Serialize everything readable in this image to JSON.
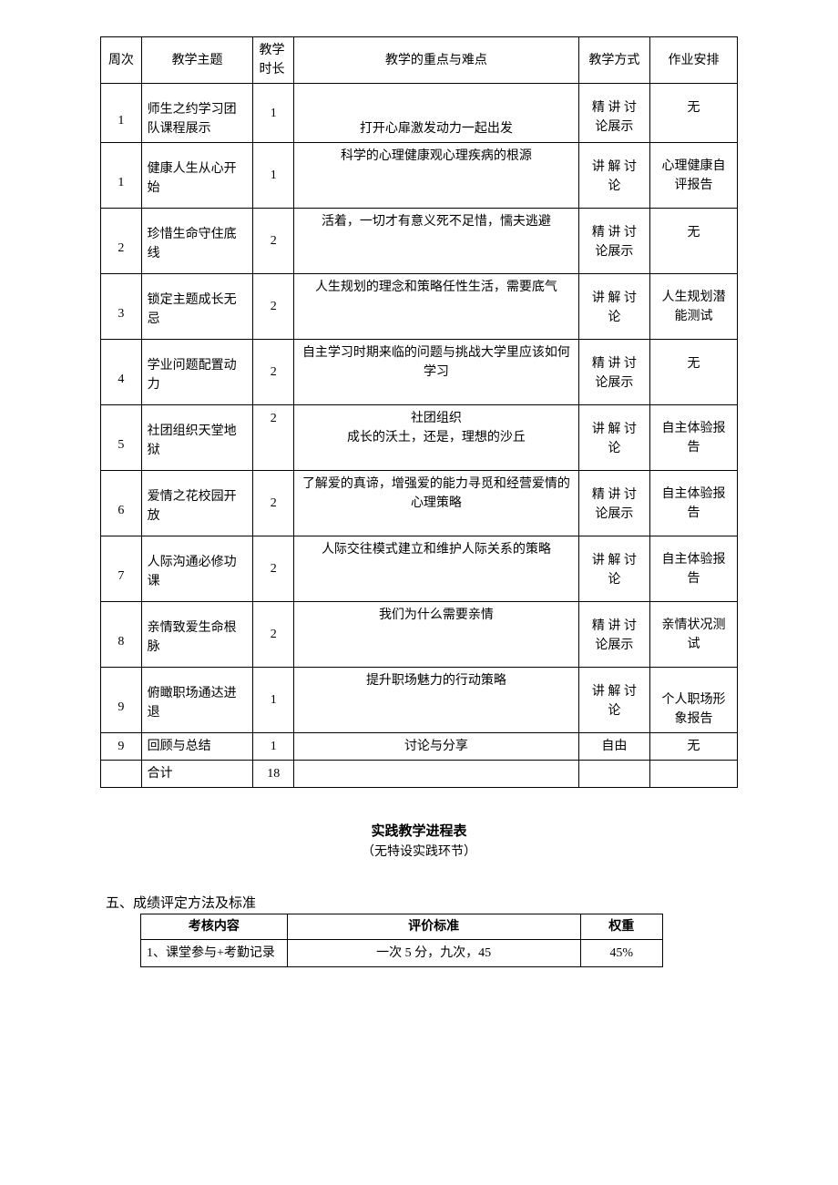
{
  "schedule": {
    "columns": [
      "周次",
      "教学主题",
      "教学时长",
      "教学的重点与难点",
      "教学方式",
      "作业安排"
    ],
    "rows": [
      {
        "week": "1",
        "topic": "师生之约学习团队课程展示",
        "hours": "1",
        "focus": "打开心扉激发动力一起出发",
        "method": "精讲讨论展示",
        "hw": "无"
      },
      {
        "week": "1",
        "topic": "健康人生从心开始",
        "hours": "1",
        "focus": "科学的心理健康观心理疾病的根源",
        "method": "讲解讨论",
        "hw": "心理健康自评报告"
      },
      {
        "week": "2",
        "topic": "珍惜生命守住底线",
        "hours": "2",
        "focus": "活着，一切才有意义死不足惜，懦夫逃避",
        "method": "精讲讨论展示",
        "hw": "无"
      },
      {
        "week": "3",
        "topic": "锁定主题成长无忌",
        "hours": "2",
        "focus": "人生规划的理念和策略任性生活，需要底气",
        "method": "讲解讨论",
        "hw": "人生规划潜能测试"
      },
      {
        "week": "4",
        "topic": "学业问题配置动力",
        "hours": "2",
        "focus": "自主学习时期来临的问题与挑战大学里应该如何学习",
        "method": "精讲讨论展示",
        "hw": "无"
      },
      {
        "week": "5",
        "topic": "社团组织天堂地狱",
        "hours": "2",
        "focus": "社团组织\n成长的沃土，还是，理想的沙丘",
        "method": "讲解讨论",
        "hw": "自主体验报告"
      },
      {
        "week": "6",
        "topic": "爱情之花校园开放",
        "hours": "2",
        "focus": "了解爱的真谛，增强爱的能力寻觅和经营爱情的心理策略",
        "method": "精讲讨论展示",
        "hw": "自主体验报告"
      },
      {
        "week": "7",
        "topic": "人际沟通必修功课",
        "hours": "2",
        "focus": "人际交往模式建立和维护人际关系的策略",
        "method": "讲解讨论",
        "hw": "自主体验报告"
      },
      {
        "week": "8",
        "topic": "亲情致爱生命根脉",
        "hours": "2",
        "focus": "我们为什么需要亲情",
        "method": "精讲讨论展示",
        "hw": "亲情状况测试"
      },
      {
        "week": "9",
        "topic": "俯瞰职场通达进退",
        "hours": "1",
        "focus": "提升职场魅力的行动策略",
        "method": "讲解讨论",
        "hw": "个人职场形象报告"
      },
      {
        "week": "9",
        "topic": "回顾与总结",
        "hours": "1",
        "focus": "讨论与分享",
        "method": "自由",
        "hw": "无"
      },
      {
        "week": "",
        "topic": "合计",
        "hours": "18",
        "focus": "",
        "method": "",
        "hw": ""
      }
    ]
  },
  "practice": {
    "title": "实践教学进程表",
    "subtitle": "（无特设实践环节）"
  },
  "grading": {
    "heading": "五、成绩评定方法及标准",
    "columns": [
      "考核内容",
      "评价标准",
      "权重"
    ],
    "rows": [
      {
        "item": "1、课堂参与+考勤记录",
        "std": "一次 5 分，九次，45",
        "weight": "45%"
      }
    ]
  }
}
